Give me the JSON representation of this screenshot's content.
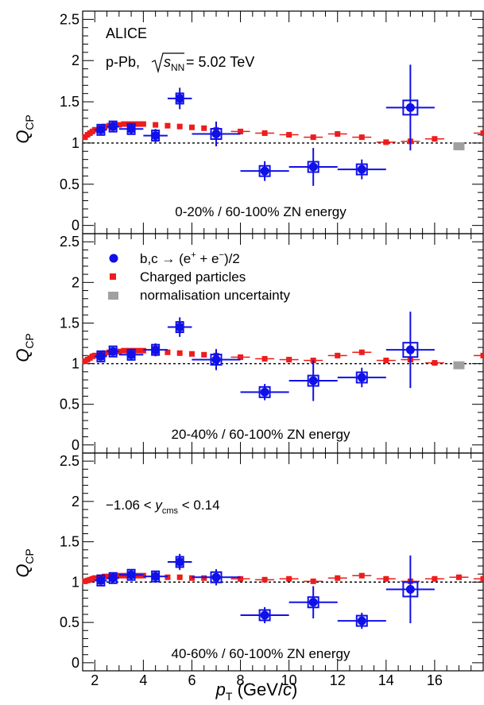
{
  "figure": {
    "collaboration": "ALICE",
    "system": "p-Pb,",
    "sqrt_s_prefix": "s",
    "sqrt_s_sub": "NN",
    "sqrt_s_value": " = 5.02 TeV",
    "ylabel_main": "Q",
    "ylabel_sub": "CP",
    "xlabel_main": "p",
    "xlabel_sub": "T",
    "xlabel_unit": " (GeV/",
    "xlabel_c": "c",
    "xlabel_close": ")",
    "rapidity_pre": "−1.06 < ",
    "rapidity_y": "y",
    "rapidity_sub": "cms",
    "rapidity_post": " < 0.14"
  },
  "legend": {
    "hfe_label_pre": "b,c → (e",
    "hfe_plus": "+",
    "hfe_mid": " + e",
    "hfe_minus": "−",
    "hfe_post": ")/2",
    "charged_label": "Charged particles",
    "norm_label": "normalisation uncertainty"
  },
  "colors": {
    "hfe": "#1010e8",
    "charged": "#ee1c1c",
    "norm": "#a0a0a0"
  },
  "chart_data": [
    {
      "type": "scatter",
      "title": "0-20% / 60-100% ZN energy",
      "xlim": [
        1.5,
        18
      ],
      "ylim": [
        -0.1,
        2.6
      ],
      "x_ticks": [
        "2",
        "4",
        "6",
        "8",
        "10",
        "12",
        "14",
        "16"
      ],
      "y_ticks": [
        "0",
        "0.5",
        "1",
        "1.5",
        "2",
        "2.5"
      ],
      "reference_line": 1,
      "series": [
        {
          "name": "b,c → (e+ + e−)/2",
          "x": [
            2.25,
            2.75,
            3.5,
            4.5,
            5.5,
            7,
            9,
            11,
            13,
            15
          ],
          "y": [
            1.16,
            1.2,
            1.17,
            1.09,
            1.54,
            1.11,
            0.66,
            0.71,
            0.68,
            1.43
          ],
          "x_err": [
            0.25,
            0.25,
            0.5,
            0.5,
            0.5,
            1,
            1,
            1,
            1,
            1
          ],
          "y_err": [
            0.05,
            0.05,
            0.06,
            0.08,
            0.13,
            0.15,
            0.12,
            0.23,
            0.12,
            0.52
          ]
        },
        {
          "name": "Charged particles",
          "x": [
            1.6,
            1.7,
            1.8,
            1.9,
            2.0,
            2.2,
            2.4,
            2.6,
            2.8,
            3.0,
            3.2,
            3.4,
            3.6,
            3.8,
            4.0,
            4.5,
            5.0,
            5.5,
            6.0,
            6.5,
            7.0,
            8.0,
            9.0,
            10.0,
            11.0,
            12.0,
            13.0,
            14.0,
            15.0,
            16.0,
            18.0
          ],
          "y": [
            1.07,
            1.1,
            1.12,
            1.14,
            1.16,
            1.18,
            1.2,
            1.21,
            1.22,
            1.22,
            1.23,
            1.23,
            1.23,
            1.23,
            1.23,
            1.22,
            1.21,
            1.2,
            1.19,
            1.18,
            1.16,
            1.14,
            1.12,
            1.1,
            1.07,
            1.11,
            1.07,
            1.01,
            1.02,
            1.05,
            1.12
          ]
        },
        {
          "name": "normalisation uncertainty",
          "x": [
            17
          ],
          "y": [
            0.96
          ]
        }
      ]
    },
    {
      "type": "scatter",
      "title": "20-40% / 60-100% ZN energy",
      "xlim": [
        1.5,
        18
      ],
      "ylim": [
        -0.1,
        2.6
      ],
      "x_ticks": [
        "2",
        "4",
        "6",
        "8",
        "10",
        "12",
        "14",
        "16"
      ],
      "y_ticks": [
        "0",
        "0.5",
        "1",
        "1.5",
        "2",
        "2.5"
      ],
      "reference_line": 1,
      "series": [
        {
          "name": "b,c → (e+ + e−)/2",
          "x": [
            2.25,
            2.75,
            3.5,
            4.5,
            5.5,
            7,
            9,
            11,
            13,
            15
          ],
          "y": [
            1.09,
            1.15,
            1.11,
            1.17,
            1.45,
            1.05,
            0.65,
            0.79,
            0.83,
            1.17
          ],
          "x_err": [
            0.25,
            0.25,
            0.5,
            0.5,
            0.5,
            1,
            1,
            1,
            1,
            1
          ],
          "y_err": [
            0.05,
            0.05,
            0.06,
            0.08,
            0.12,
            0.13,
            0.1,
            0.25,
            0.12,
            0.47
          ]
        },
        {
          "name": "Charged particles",
          "x": [
            1.6,
            1.7,
            1.8,
            1.9,
            2.0,
            2.2,
            2.4,
            2.6,
            2.8,
            3.0,
            3.2,
            3.4,
            3.6,
            3.8,
            4.0,
            4.5,
            5.0,
            5.5,
            6.0,
            6.5,
            7.0,
            8.0,
            9.0,
            10.0,
            11.0,
            12.0,
            13.0,
            14.0,
            15.0,
            16.0,
            18.0
          ],
          "y": [
            1.03,
            1.05,
            1.07,
            1.09,
            1.1,
            1.12,
            1.13,
            1.14,
            1.15,
            1.15,
            1.16,
            1.16,
            1.16,
            1.16,
            1.16,
            1.15,
            1.14,
            1.13,
            1.12,
            1.11,
            1.1,
            1.08,
            1.06,
            1.05,
            1.04,
            1.1,
            1.14,
            1.04,
            1.05,
            1.01,
            1.1
          ]
        },
        {
          "name": "normalisation uncertainty",
          "x": [
            17
          ],
          "y": [
            0.98
          ]
        }
      ]
    },
    {
      "type": "scatter",
      "title": "40-60% / 60-100% ZN energy",
      "xlim": [
        1.5,
        18
      ],
      "ylim": [
        -0.1,
        2.6
      ],
      "x_ticks": [
        "2",
        "4",
        "6",
        "8",
        "10",
        "12",
        "14",
        "16"
      ],
      "y_ticks": [
        "0",
        "0.5",
        "1",
        "1.5",
        "2",
        "2.5"
      ],
      "reference_line": 1,
      "series": [
        {
          "name": "b,c → (e+ + e−)/2",
          "x": [
            2.25,
            2.75,
            3.5,
            4.5,
            5.5,
            7,
            9,
            11,
            13,
            15
          ],
          "y": [
            1.02,
            1.05,
            1.09,
            1.07,
            1.25,
            1.06,
            0.59,
            0.75,
            0.52,
            0.91
          ],
          "x_err": [
            0.25,
            0.25,
            0.5,
            0.5,
            0.5,
            1,
            1,
            1,
            1,
            1
          ],
          "y_err": [
            0.05,
            0.05,
            0.06,
            0.07,
            0.1,
            0.1,
            0.1,
            0.2,
            0.1,
            0.42
          ]
        },
        {
          "name": "Charged particles",
          "x": [
            1.6,
            1.7,
            1.8,
            1.9,
            2.0,
            2.2,
            2.4,
            2.6,
            2.8,
            3.0,
            3.2,
            3.4,
            3.6,
            3.8,
            4.0,
            4.5,
            5.0,
            5.5,
            6.0,
            6.5,
            7.0,
            8.0,
            9.0,
            10.0,
            11.0,
            12.0,
            13.0,
            14.0,
            15.0,
            16.0,
            17.0,
            18.0
          ],
          "y": [
            1.01,
            1.02,
            1.03,
            1.04,
            1.05,
            1.06,
            1.07,
            1.07,
            1.08,
            1.08,
            1.08,
            1.08,
            1.08,
            1.08,
            1.08,
            1.07,
            1.06,
            1.06,
            1.05,
            1.05,
            1.04,
            1.04,
            1.03,
            1.04,
            1.01,
            1.05,
            1.08,
            1.04,
            1.01,
            1.04,
            1.06,
            1.04
          ]
        }
      ]
    }
  ]
}
